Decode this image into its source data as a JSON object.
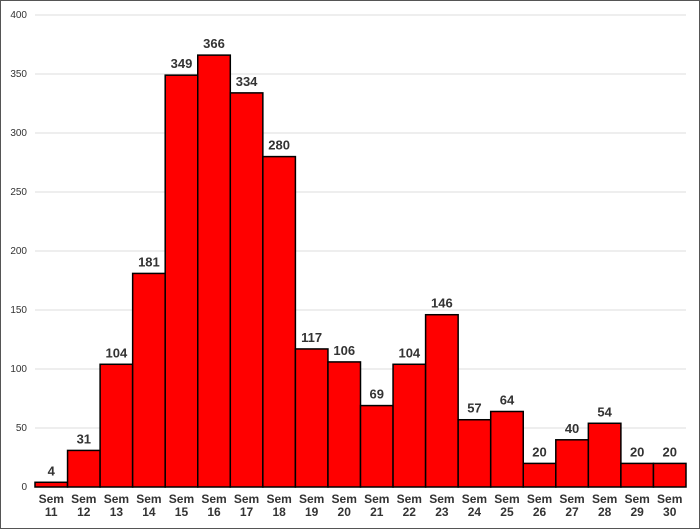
{
  "chart_data": {
    "type": "bar",
    "categories": [
      "Sem 11",
      "Sem 12",
      "Sem 13",
      "Sem 14",
      "Sem 15",
      "Sem 16",
      "Sem 17",
      "Sem 18",
      "Sem 19",
      "Sem 20",
      "Sem 21",
      "Sem 22",
      "Sem 23",
      "Sem 24",
      "Sem 25",
      "Sem 26",
      "Sem 27",
      "Sem 28",
      "Sem 29",
      "Sem 30"
    ],
    "values": [
      4,
      31,
      104,
      181,
      349,
      366,
      334,
      280,
      117,
      106,
      69,
      104,
      146,
      57,
      64,
      20,
      40,
      54,
      20,
      20
    ],
    "color": "#ff0000",
    "ylim": [
      0,
      400
    ],
    "yticks": [
      0,
      50,
      100,
      150,
      200,
      250,
      300,
      350,
      400
    ],
    "grid": true
  }
}
